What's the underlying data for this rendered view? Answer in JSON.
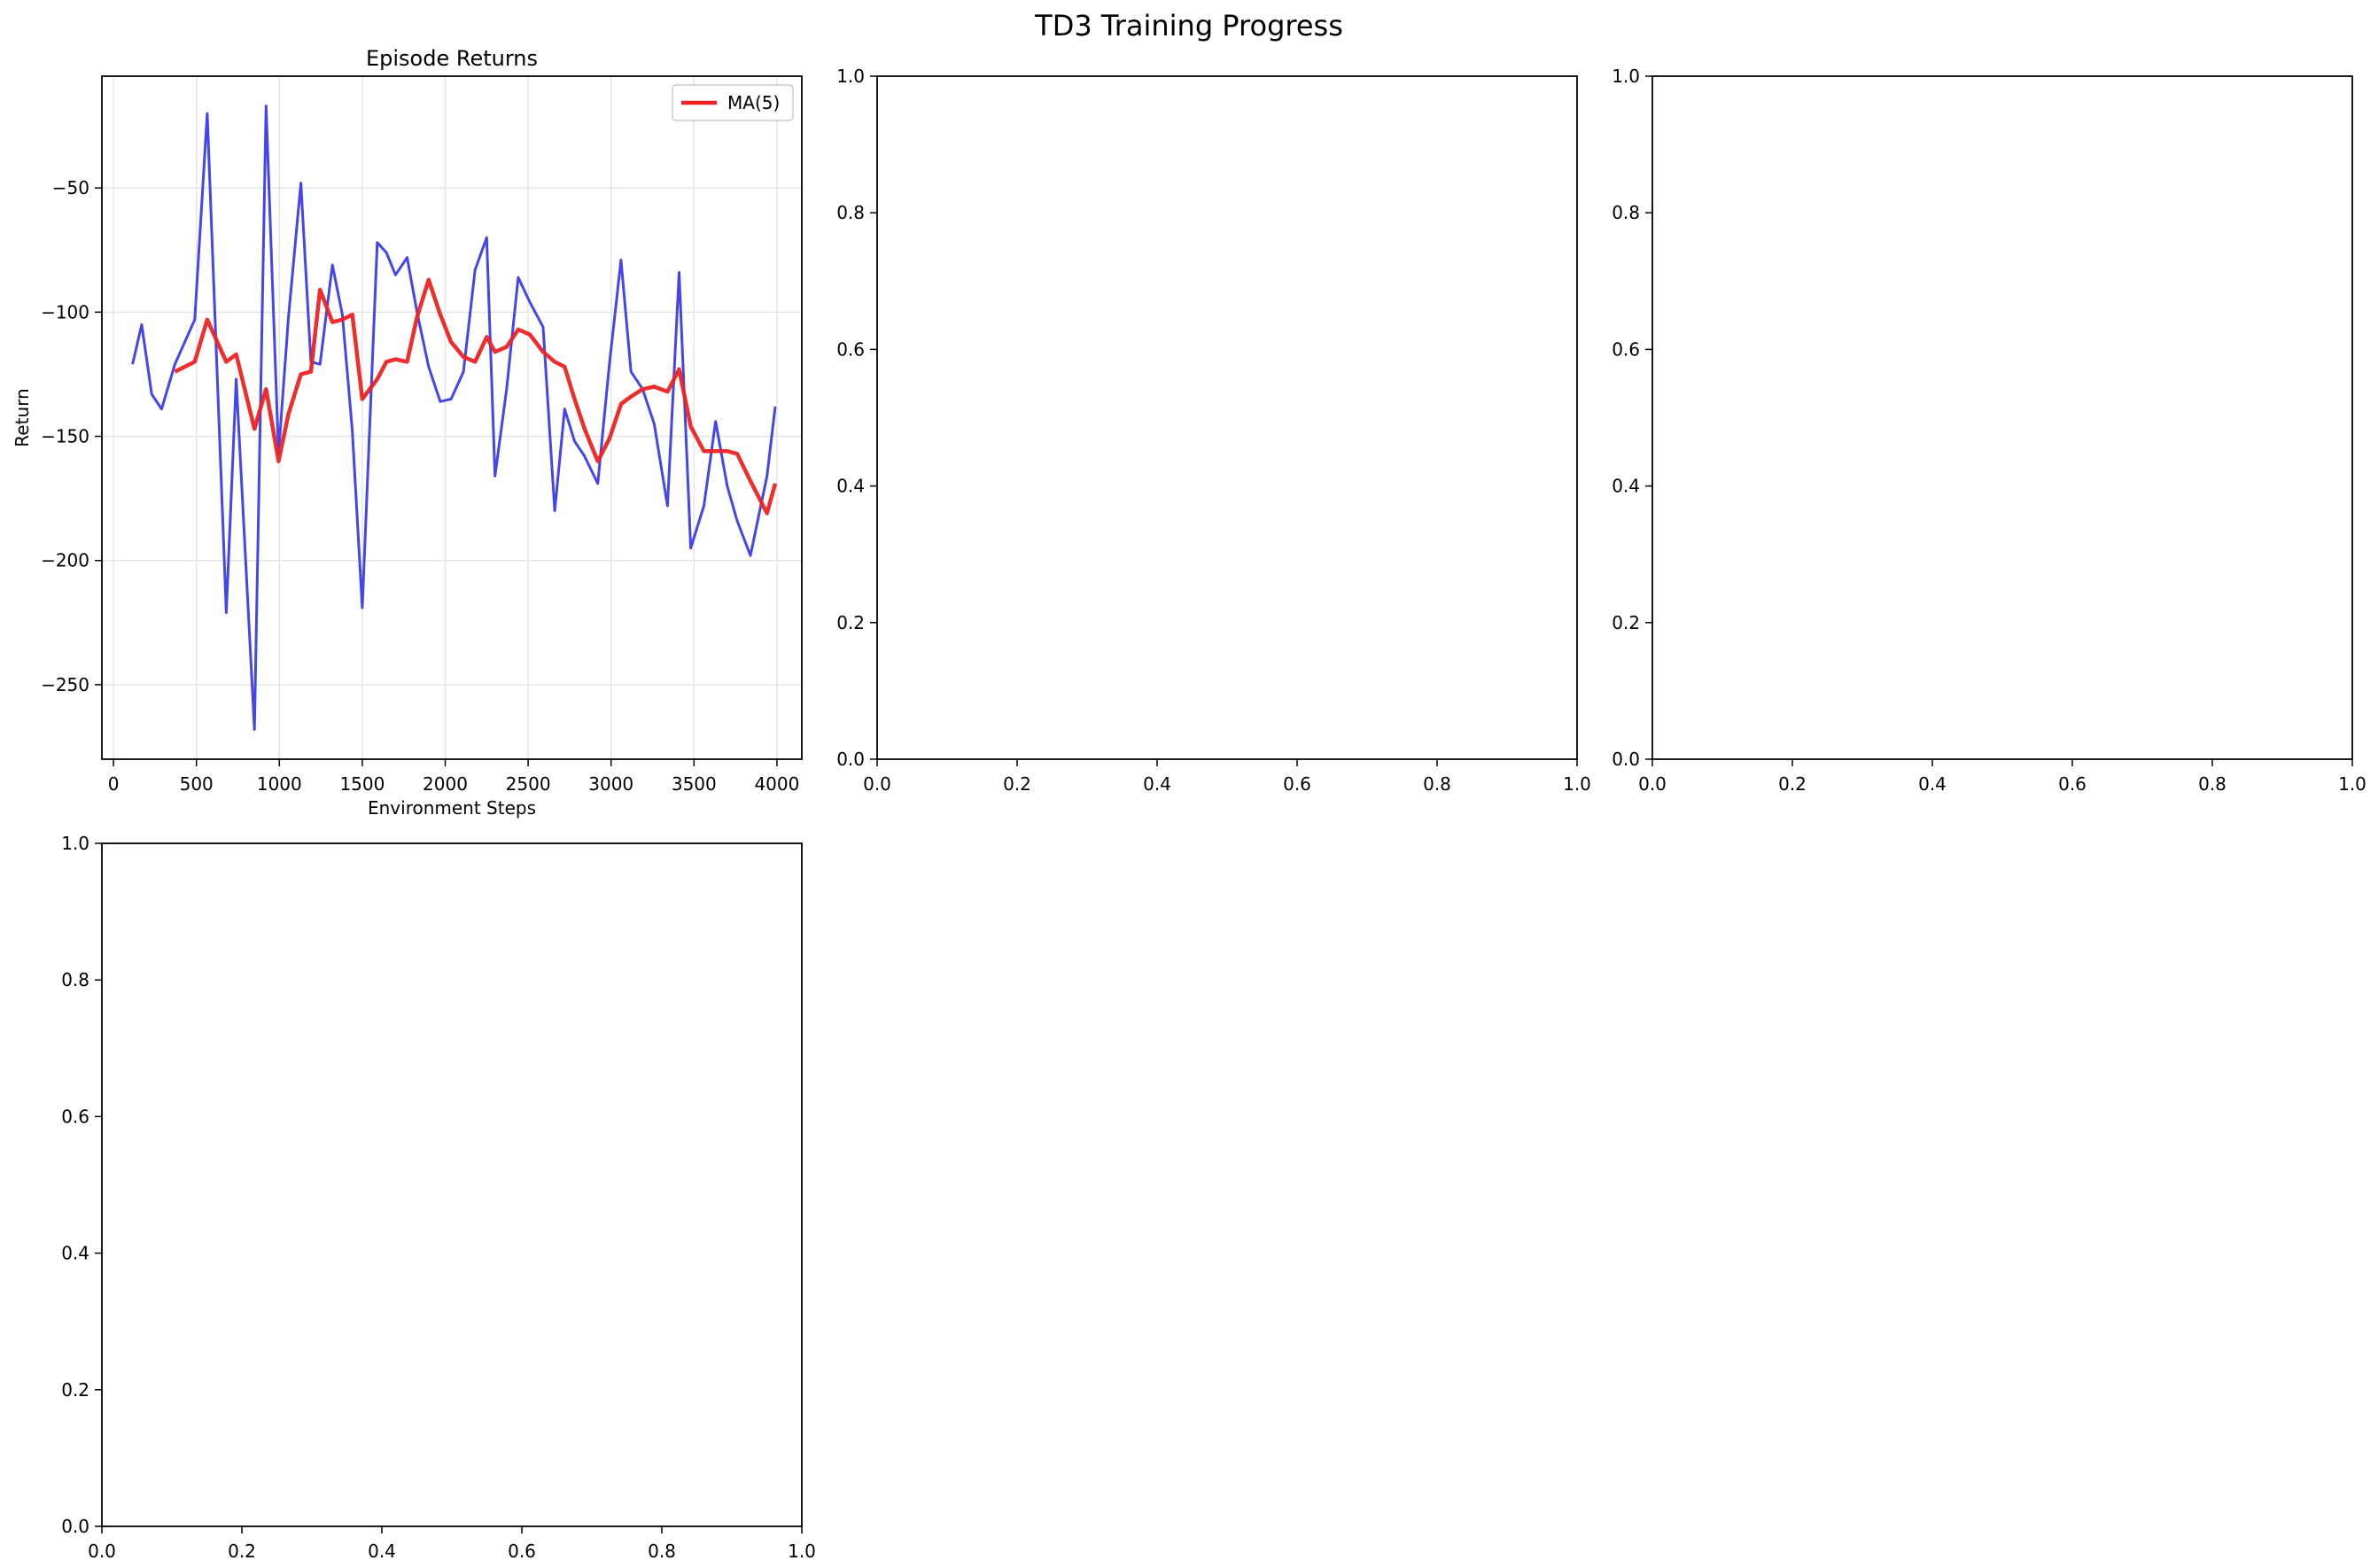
{
  "figure": {
    "title": "TD3 Training Progress"
  },
  "chart_data": [
    {
      "type": "line",
      "title": "Episode Returns",
      "xlabel": "Environment Steps",
      "ylabel": "Return",
      "xlim": [
        -70,
        4150
      ],
      "ylim": [
        -280,
        -5
      ],
      "xticks": [
        0,
        500,
        1000,
        1500,
        2000,
        2500,
        3000,
        3500,
        4000
      ],
      "xtick_labels": [
        "0",
        "500",
        "1000",
        "1500",
        "2000",
        "2500",
        "3000",
        "3500",
        "4000"
      ],
      "yticks": [
        -250,
        -200,
        -150,
        -100,
        -50
      ],
      "ytick_labels": [
        "−250",
        "−200",
        "−150",
        "−100",
        "−50"
      ],
      "grid": true,
      "legend": "top-right",
      "series": [
        {
          "name": "",
          "color": "#3b3bef",
          "x": [
            115,
            170,
            230,
            290,
            370,
            490,
            565,
            680,
            740,
            850,
            920,
            995,
            1055,
            1130,
            1190,
            1245,
            1320,
            1380,
            1440,
            1500,
            1590,
            1645,
            1700,
            1770,
            1830,
            1900,
            1970,
            2035,
            2110,
            2180,
            2250,
            2300,
            2370,
            2440,
            2510,
            2590,
            2660,
            2720,
            2780,
            2840,
            2920,
            2990,
            3060,
            3120,
            3190,
            3260,
            3340,
            3410,
            3480,
            3560,
            3630,
            3700,
            3760,
            3840,
            3940,
            3990
          ],
          "y": [
            -121,
            -105,
            -133,
            -139,
            -121,
            -103,
            -20,
            -221,
            -127,
            -268,
            -17,
            -157,
            -102,
            -48,
            -120,
            -121,
            -81,
            -101,
            -148,
            -219,
            -72,
            -76,
            -85,
            -78,
            -100,
            -122,
            -136,
            -135,
            -124,
            -83,
            -70,
            -166,
            -131,
            -86,
            -96,
            -106,
            -180,
            -139,
            -152,
            -158,
            -169,
            -121,
            -79,
            -124,
            -131,
            -145,
            -178,
            -84,
            -195,
            -178,
            -144,
            -170,
            -184,
            -198,
            -166,
            -138
          ]
        },
        {
          "name": "MA(5)",
          "color": "#ee2222",
          "x": [
            370,
            490,
            565,
            680,
            740,
            850,
            920,
            995,
            1055,
            1130,
            1190,
            1245,
            1320,
            1380,
            1440,
            1500,
            1590,
            1645,
            1700,
            1770,
            1830,
            1900,
            1970,
            2035,
            2110,
            2180,
            2250,
            2300,
            2370,
            2440,
            2510,
            2590,
            2660,
            2720,
            2780,
            2840,
            2920,
            2990,
            3060,
            3120,
            3190,
            3260,
            3340,
            3410,
            3480,
            3560,
            3630,
            3700,
            3760,
            3840,
            3940,
            3990
          ],
          "y": [
            -124,
            -120,
            -103,
            -120,
            -117,
            -147,
            -131,
            -160,
            -141,
            -125,
            -124,
            -91,
            -104,
            -103,
            -101,
            -135,
            -127,
            -120,
            -119,
            -120,
            -102,
            -87,
            -101,
            -112,
            -118,
            -120,
            -110,
            -116,
            -114,
            -107,
            -109,
            -116,
            -120,
            -122,
            -135,
            -147,
            -160,
            -151,
            -137,
            -134,
            -131,
            -130,
            -132,
            -123,
            -146,
            -156,
            -156,
            -156,
            -157,
            -168,
            -181,
            -169
          ]
        }
      ]
    },
    {
      "type": "empty",
      "xlim": [
        0,
        1
      ],
      "ylim": [
        0,
        1
      ],
      "xticks": [
        0,
        0.2,
        0.4,
        0.6,
        0.8,
        1.0
      ],
      "xtick_labels": [
        "0.0",
        "0.2",
        "0.4",
        "0.6",
        "0.8",
        "1.0"
      ],
      "yticks": [
        0,
        0.2,
        0.4,
        0.6,
        0.8,
        1.0
      ],
      "ytick_labels": [
        "0.0",
        "0.2",
        "0.4",
        "0.6",
        "0.8",
        "1.0"
      ]
    },
    {
      "type": "empty",
      "xlim": [
        0,
        1
      ],
      "ylim": [
        0,
        1
      ],
      "xticks": [
        0,
        0.2,
        0.4,
        0.6,
        0.8,
        1.0
      ],
      "xtick_labels": [
        "0.0",
        "0.2",
        "0.4",
        "0.6",
        "0.8",
        "1.0"
      ],
      "yticks": [
        0,
        0.2,
        0.4,
        0.6,
        0.8,
        1.0
      ],
      "ytick_labels": [
        "0.0",
        "0.2",
        "0.4",
        "0.6",
        "0.8",
        "1.0"
      ]
    },
    {
      "type": "empty",
      "xlim": [
        0,
        1
      ],
      "ylim": [
        0,
        1
      ],
      "xticks": [
        0,
        0.2,
        0.4,
        0.6,
        0.8,
        1.0
      ],
      "xtick_labels": [
        "0.0",
        "0.2",
        "0.4",
        "0.6",
        "0.8",
        "1.0"
      ],
      "yticks": [
        0,
        0.2,
        0.4,
        0.6,
        0.8,
        1.0
      ],
      "ytick_labels": [
        "0.0",
        "0.2",
        "0.4",
        "0.6",
        "0.8",
        "1.0"
      ]
    }
  ]
}
